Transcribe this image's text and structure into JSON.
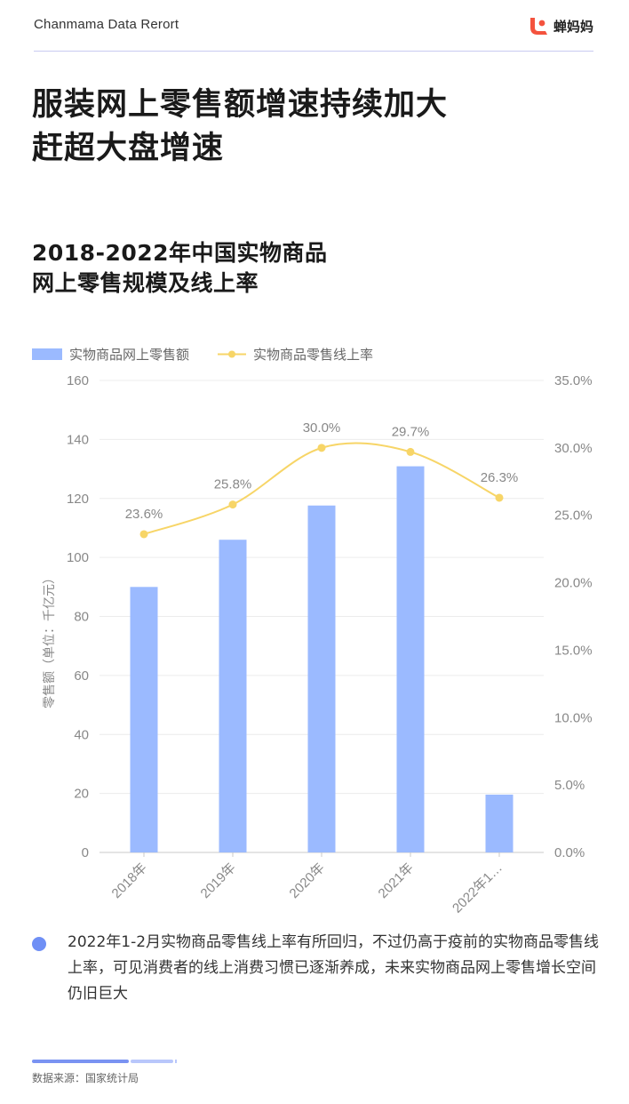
{
  "header": {
    "brand_en": "Chanmama Data Rerort",
    "brand_cn": "蝉妈妈",
    "logo_icon": "chanmama-logo-icon",
    "logo_color": "#f4533e"
  },
  "title": {
    "line1": "服装网上零售额增速持续加大",
    "line2": "赶超大盘增速"
  },
  "chart_title": {
    "line1": "2018-2022年中国实物商品",
    "line2": "网上零售规模及线上率"
  },
  "chart_data": {
    "type": "bar",
    "categories": [
      "2018年",
      "2019年",
      "2020年",
      "2021年",
      "2022年1…"
    ],
    "series": [
      {
        "name": "实物商品网上零售额",
        "type": "bar",
        "axis": "left",
        "color": "#9bbaff",
        "values": [
          90,
          106,
          117.6,
          130.9,
          19.6
        ]
      },
      {
        "name": "实物商品零售线上率",
        "type": "line",
        "axis": "right",
        "color": "#f7d567",
        "values": [
          23.6,
          25.8,
          30.0,
          29.7,
          26.3
        ],
        "labels": [
          "23.6%",
          "25.8%",
          "30.0%",
          "29.7%",
          "26.3%"
        ]
      }
    ],
    "ylabel": "零售额（单位：千亿元）",
    "ylim": [
      0,
      160
    ],
    "yticks": [
      "160",
      "140",
      "120",
      "100",
      "80",
      "60",
      "40",
      "20",
      "0"
    ],
    "y2lim": [
      0,
      35
    ],
    "y2ticks": [
      "35.0%",
      "30.0%",
      "25.0%",
      "20.0%",
      "15.0%",
      "10.0%",
      "5.0%",
      "0.0%"
    ],
    "legend_placement": "top-left",
    "grid": true
  },
  "note": {
    "text": "2022年1-2月实物商品零售线上率有所回归，不过仍高于疫前的实物商品零售线上率，可见消费者的线上消费习惯已逐渐养成，未来实物商品网上零售增长空间仍旧巨大"
  },
  "source": "数据来源：国家统计局"
}
